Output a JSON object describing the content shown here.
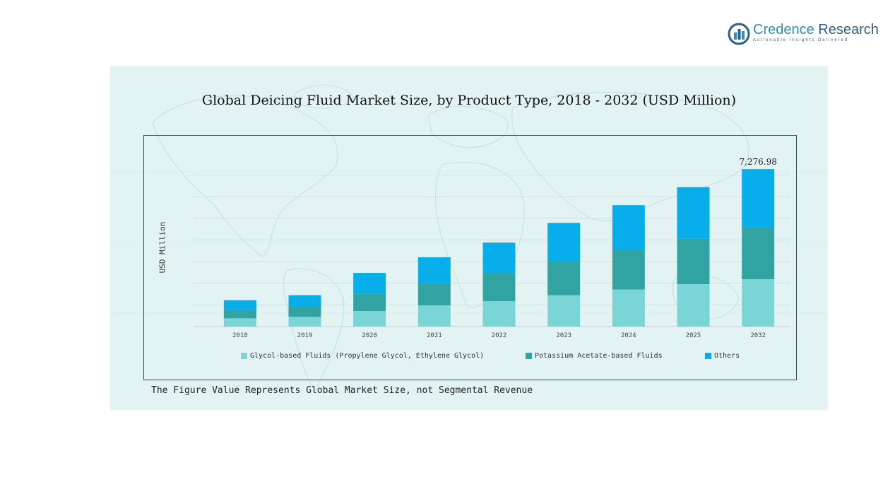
{
  "brand": {
    "name_a": "Credence",
    "name_b": "Research",
    "tagline": "Actionable Insights Delivered",
    "logo_icon": "bar-chart-circle-icon"
  },
  "chart_data": {
    "type": "bar",
    "stacked": true,
    "title": "Global Deicing Fluid Market Size, by Product Type, 2018 - 2032 (USD Million)",
    "xlabel": "",
    "ylabel": "USD Million",
    "categories": [
      "2018",
      "2019",
      "2020",
      "2021",
      "2022",
      "2023",
      "2024",
      "2025",
      "2032"
    ],
    "series": [
      {
        "name": "Glycol-based Fluids (Propylene Glycol, Ethylene Glycol)",
        "color": "#79d5d6",
        "values": [
          380,
          450,
          720,
          980,
          1170,
          1450,
          1710,
          1960,
          2190
        ]
      },
      {
        "name": "Potassium Acetate-based Fluids",
        "color": "#31a3a3",
        "values": [
          390,
          480,
          810,
          1020,
          1300,
          1570,
          1830,
          2100,
          2410
        ]
      },
      {
        "name": "Others",
        "color": "#07aeea",
        "values": [
          450,
          520,
          950,
          1200,
          1410,
          1770,
          2070,
          2380,
          2677
        ]
      }
    ],
    "ylim": [
      0,
      8000
    ],
    "grid": true,
    "data_labels": [
      {
        "category": "2032",
        "text": "7,276.98"
      }
    ],
    "legend_position": "bottom"
  },
  "footnote": "The Figure Value Represents Global Market Size, not Segmental Revenue"
}
